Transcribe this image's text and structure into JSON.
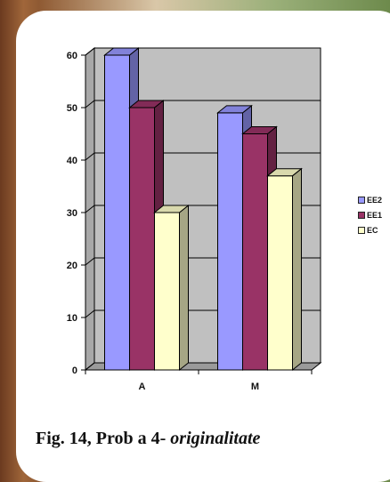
{
  "caption": {
    "prefix": "Fig. 14, Prob a 4- ",
    "italic": "originalitate"
  },
  "colors": {
    "series": [
      "#9999ff",
      "#993366",
      "#ffffcc"
    ],
    "wall": "#c0c0c0"
  },
  "chart_data": {
    "type": "bar",
    "categories": [
      "A",
      "M"
    ],
    "series": [
      {
        "name": "EE2",
        "values": [
          60,
          49
        ]
      },
      {
        "name": "EE1",
        "values": [
          50,
          45
        ]
      },
      {
        "name": "EC",
        "values": [
          30,
          37
        ]
      }
    ],
    "ylim": [
      0,
      60
    ],
    "yticks": [
      "0",
      "10",
      "20",
      "30",
      "40",
      "50",
      "60"
    ],
    "grid": true,
    "legend_position": "right",
    "title": "",
    "xlabel": "",
    "ylabel": ""
  }
}
